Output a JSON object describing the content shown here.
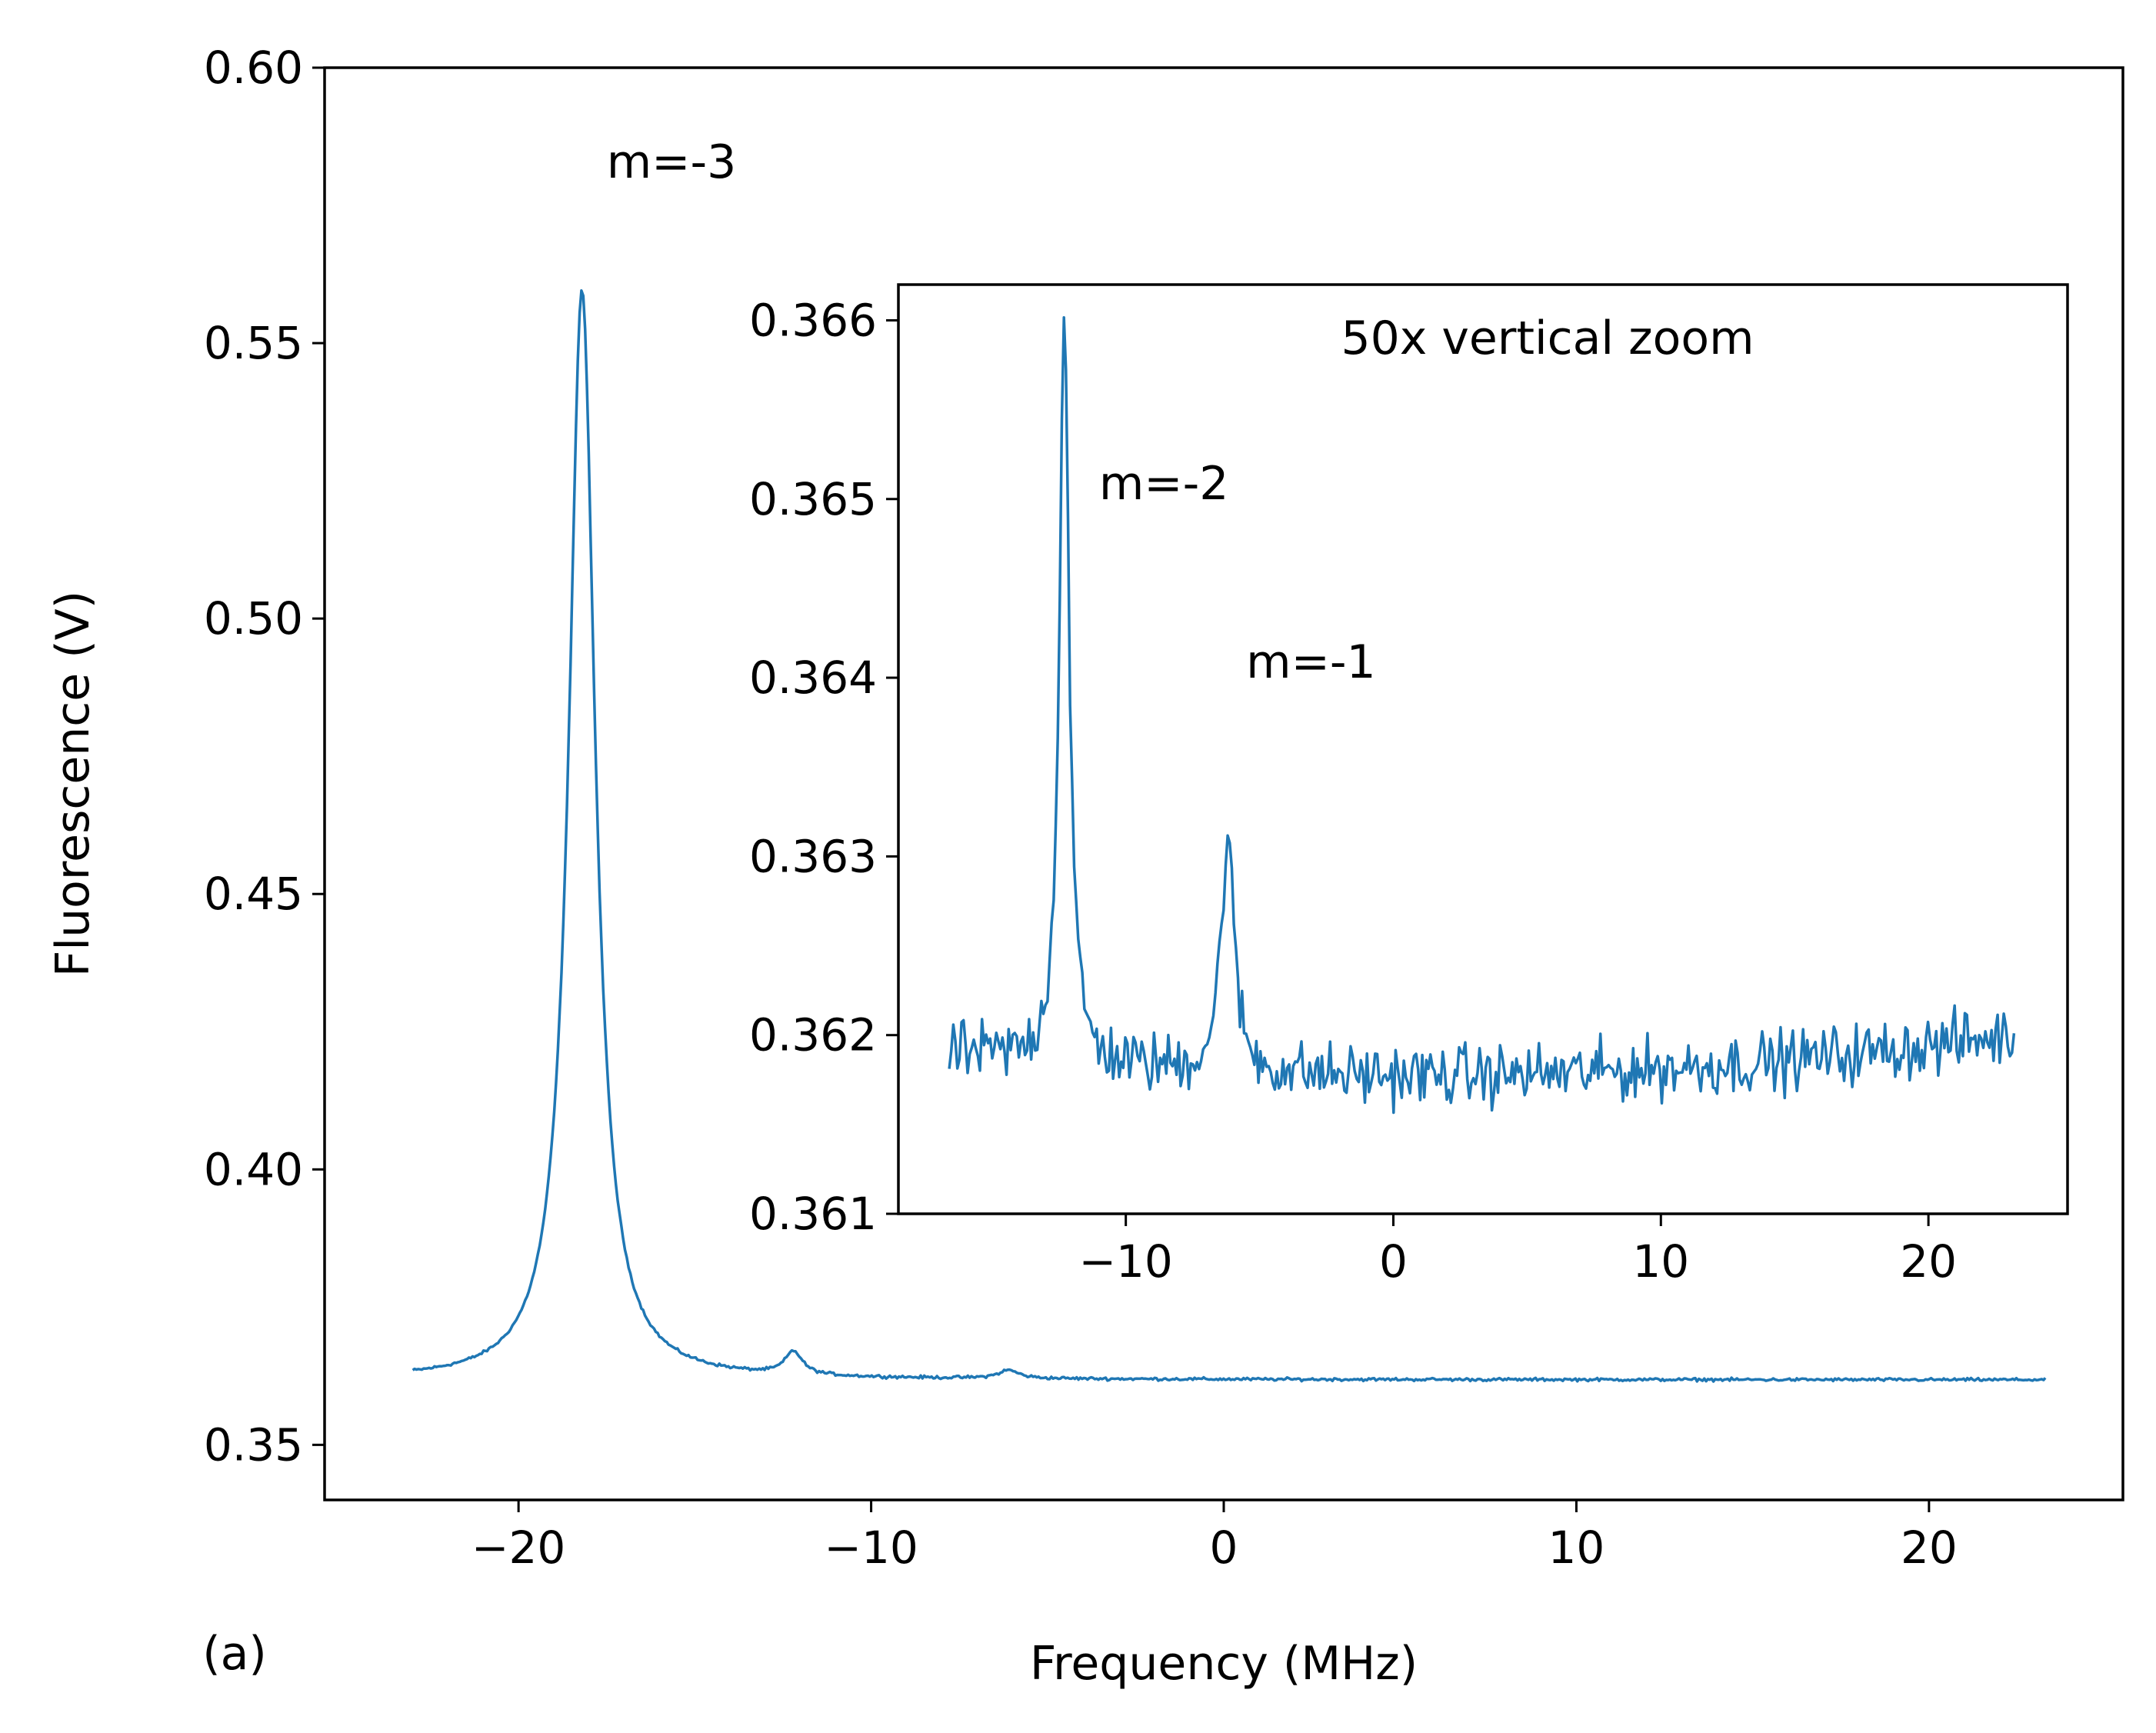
{
  "figure_label": "(a)",
  "colors": {
    "series": "#1f77b4",
    "axes": "#000000",
    "background": "#ffffff"
  },
  "chart_data": [
    {
      "id": "main",
      "type": "line",
      "xlabel": "Frequency (MHz)",
      "ylabel": "Fluorescence (V)",
      "xlim": [
        -25.5,
        25.5
      ],
      "ylim": [
        0.34,
        0.6
      ],
      "xticks": [
        -20,
        -10,
        0,
        10,
        20
      ],
      "xtick_labels": [
        "−20",
        "−10",
        "0",
        "10",
        "20"
      ],
      "yticks": [
        0.35,
        0.4,
        0.45,
        0.5,
        0.55,
        0.6
      ],
      "ytick_labels": [
        "0.35",
        "0.40",
        "0.45",
        "0.50",
        "0.55",
        "0.60"
      ],
      "grid": false,
      "x_range": [
        -23,
        23.3
      ],
      "baseline": 0.3618,
      "noise_amplitude": 0.0004,
      "peaks": [
        {
          "center": -18.2,
          "amplitude": 0.198,
          "width": 0.45
        },
        {
          "center": -12.2,
          "amplitude": 0.0042,
          "width": 0.3
        },
        {
          "center": -6.1,
          "amplitude": 0.0015,
          "width": 0.35
        }
      ],
      "annotations": [
        {
          "text": "m=-3",
          "x": -17.5,
          "y": 0.58
        }
      ]
    },
    {
      "id": "inset",
      "type": "line",
      "title": "50x vertical zoom",
      "xlim": [
        -18.5,
        25.2
      ],
      "ylim": [
        0.361,
        0.3662
      ],
      "xticks": [
        -10,
        0,
        10,
        20
      ],
      "xtick_labels": [
        "−10",
        "0",
        "10",
        "20"
      ],
      "yticks": [
        0.361,
        0.362,
        0.363,
        0.364,
        0.365,
        0.366
      ],
      "ytick_labels": [
        "0.361",
        "0.362",
        "0.363",
        "0.364",
        "0.365",
        "0.366"
      ],
      "grid": false,
      "x_range": [
        -16.6,
        23.2
      ],
      "baseline_start": 0.3619,
      "baseline_mid": 0.3616,
      "baseline_end": 0.362,
      "noise_amplitude": 0.00025,
      "peaks": [
        {
          "center": -12.3,
          "amplitude": 0.0042,
          "width": 0.22
        },
        {
          "center": -6.2,
          "amplitude": 0.0013,
          "width": 0.3
        }
      ],
      "annotations": [
        {
          "text": "m=-2",
          "x": -11,
          "y": 0.365
        },
        {
          "text": "m=-1",
          "x": -5.5,
          "y": 0.364
        }
      ]
    }
  ]
}
